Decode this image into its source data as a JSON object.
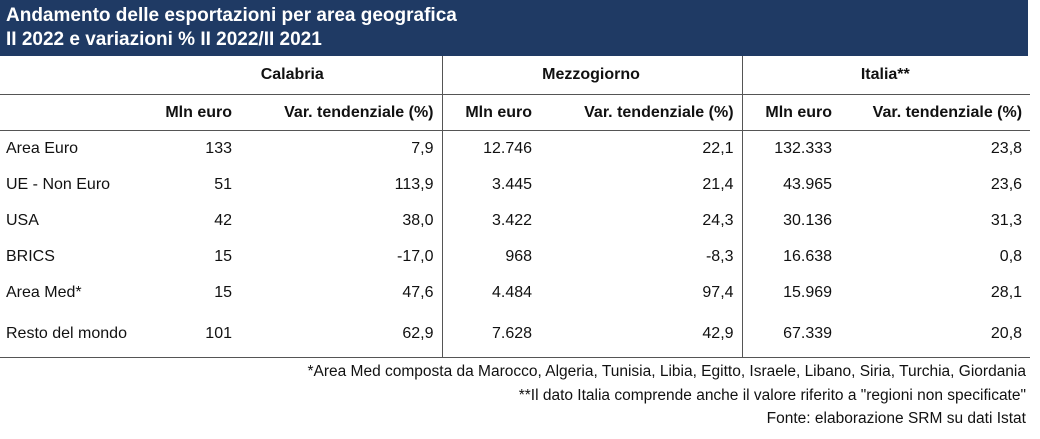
{
  "title": {
    "line1": "Andamento delle esportazioni per area geografica",
    "line2": "II 2022 e variazioni % II 2022/II 2021"
  },
  "groups": [
    "Calabria",
    "Mezzogiorno",
    "Italia**"
  ],
  "subheaders": {
    "mln": "Mln euro",
    "var": "Var. tendenziale (%)"
  },
  "rows": [
    {
      "area": "Area Euro",
      "values": [
        "133",
        "7,9",
        "12.746",
        "22,1",
        "132.333",
        "23,8"
      ]
    },
    {
      "area": "UE - Non Euro",
      "values": [
        "51",
        "113,9",
        "3.445",
        "21,4",
        "43.965",
        "23,6"
      ]
    },
    {
      "area": "USA",
      "values": [
        "42",
        "38,0",
        "3.422",
        "24,3",
        "30.136",
        "31,3"
      ]
    },
    {
      "area": "BRICS",
      "values": [
        "15",
        "-17,0",
        "968",
        "-8,3",
        "16.638",
        "0,8"
      ]
    },
    {
      "area": "Area Med*",
      "values": [
        "15",
        "47,6",
        "4.484",
        "97,4",
        "15.969",
        "28,1"
      ]
    },
    {
      "area": "Resto del mondo",
      "values": [
        "101",
        "62,9",
        "7.628",
        "42,9",
        "67.339",
        "20,8"
      ]
    }
  ],
  "notes": [
    "*Area Med composta da Marocco, Algeria, Tunisia, Libia, Egitto, Israele, Libano, Siria, Turchia, Giordania",
    "**Il dato Italia comprende anche il valore riferito a \"regioni non specificate\"",
    "Fonte: elaborazione SRM su dati Istat"
  ]
}
